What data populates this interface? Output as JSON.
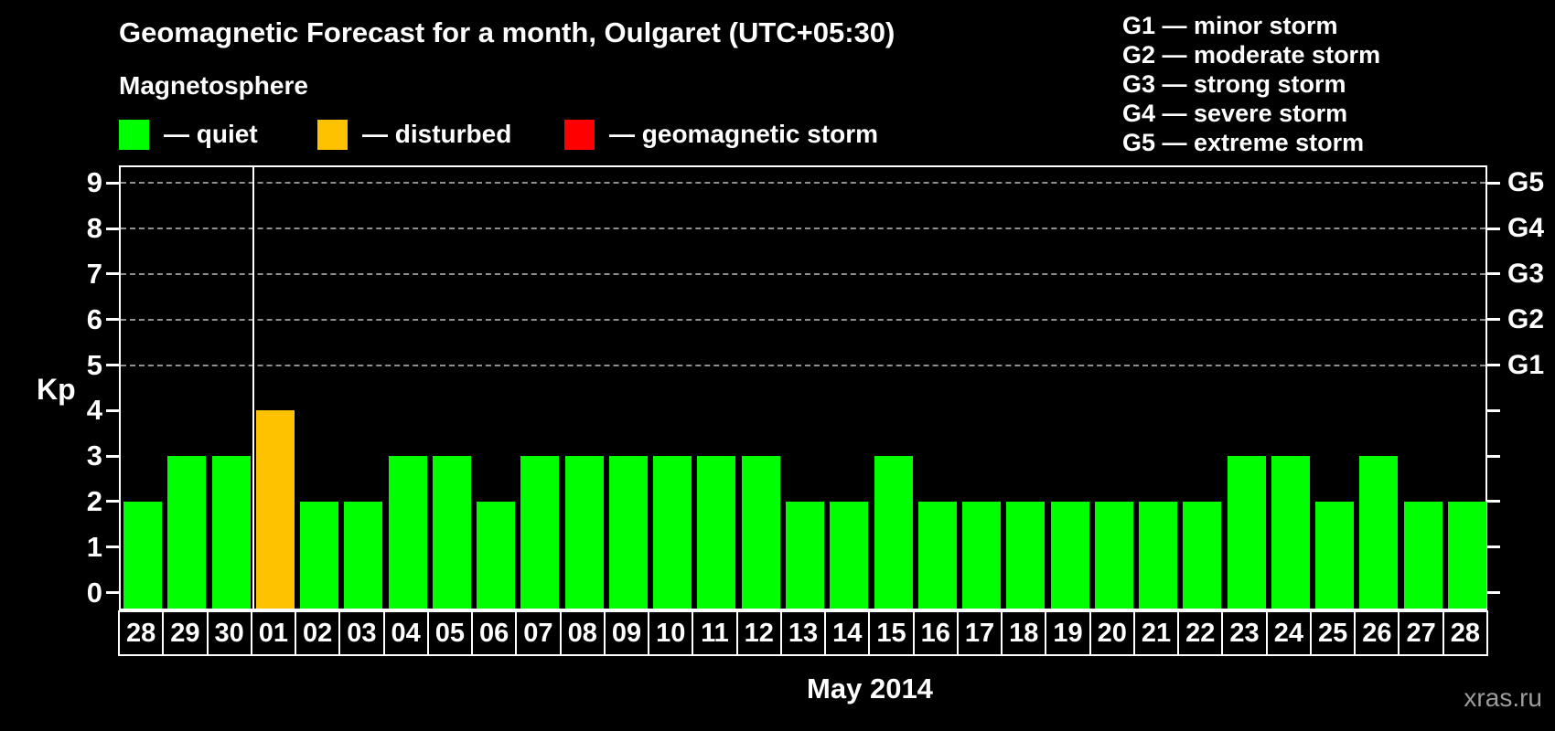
{
  "header": {
    "title": "Geomagnetic Forecast for a month, Oulgaret (UTC+05:30)",
    "subtitle": "Magnetosphere"
  },
  "legend": {
    "items": [
      {
        "name": "quiet",
        "label": "— quiet",
        "color": "#00ff00"
      },
      {
        "name": "disturbed",
        "label": "— disturbed",
        "color": "#ffc200"
      },
      {
        "name": "geomagnetic-storm",
        "label": "— geomagnetic storm",
        "color": "#ff0000"
      }
    ]
  },
  "g_legend": {
    "items": [
      "G1 — minor storm",
      "G2 — moderate storm",
      "G3 — strong storm",
      "G4 — severe storm",
      "G5 — extreme storm"
    ]
  },
  "chart_data": {
    "type": "bar",
    "title": "Geomagnetic Forecast for a month, Oulgaret (UTC+05:30)",
    "xlabel": "May 2014",
    "ylabel": "Kp",
    "ylim": [
      0,
      9
    ],
    "y_ticks": [
      0,
      1,
      2,
      3,
      4,
      5,
      6,
      7,
      8,
      9
    ],
    "gridlines_at_kp": [
      5,
      6,
      7,
      8,
      9
    ],
    "grid": "horizontal dashed at storm levels only",
    "legend_position": "top-left",
    "right_axis_labels": [
      {
        "kp": 5,
        "label": "G1"
      },
      {
        "kp": 6,
        "label": "G2"
      },
      {
        "kp": 7,
        "label": "G3"
      },
      {
        "kp": 8,
        "label": "G4"
      },
      {
        "kp": 9,
        "label": "G5"
      }
    ],
    "categories": [
      "28",
      "29",
      "30",
      "01",
      "02",
      "03",
      "04",
      "05",
      "06",
      "07",
      "08",
      "09",
      "10",
      "11",
      "12",
      "13",
      "14",
      "15",
      "16",
      "17",
      "18",
      "19",
      "20",
      "21",
      "22",
      "23",
      "24",
      "25",
      "26",
      "27",
      "28"
    ],
    "values": [
      2,
      3,
      3,
      4,
      2,
      2,
      3,
      3,
      2,
      3,
      3,
      3,
      3,
      3,
      3,
      2,
      2,
      3,
      2,
      2,
      2,
      2,
      2,
      2,
      2,
      3,
      3,
      2,
      3,
      2,
      2
    ],
    "statuses": [
      "quiet",
      "quiet",
      "quiet",
      "disturbed",
      "quiet",
      "quiet",
      "quiet",
      "quiet",
      "quiet",
      "quiet",
      "quiet",
      "quiet",
      "quiet",
      "quiet",
      "quiet",
      "quiet",
      "quiet",
      "quiet",
      "quiet",
      "quiet",
      "quiet",
      "quiet",
      "quiet",
      "quiet",
      "quiet",
      "quiet",
      "quiet",
      "quiet",
      "quiet",
      "quiet",
      "quiet"
    ],
    "status_colors": {
      "quiet": "#00ff00",
      "disturbed": "#ffc200",
      "geomagnetic-storm": "#ff0000"
    },
    "month_separator_before_index": 3
  },
  "footer": {
    "watermark": "xras.ru"
  }
}
